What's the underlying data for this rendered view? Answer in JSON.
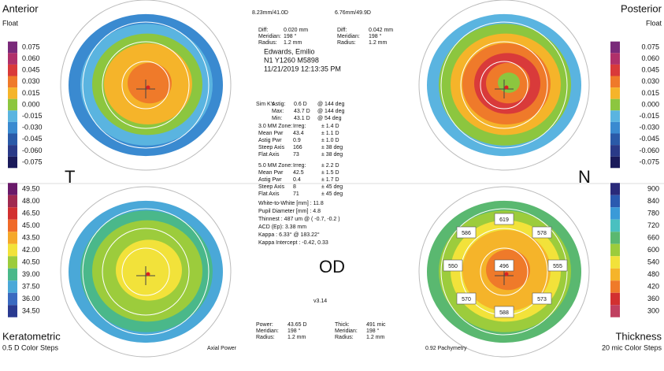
{
  "anterior": {
    "title": "Anterior",
    "subtitle": "Float",
    "scale": [
      "0.075",
      "0.060",
      "0.045",
      "0.030",
      "0.015",
      "0.000",
      "-0.015",
      "-0.030",
      "-0.045",
      "-0.060",
      "-0.075"
    ]
  },
  "posterior": {
    "title": "Posterior",
    "subtitle": "Float",
    "scale": [
      "0.075",
      "0.060",
      "0.045",
      "0.030",
      "0.015",
      "0.000",
      "-0.015",
      "-0.030",
      "-0.045",
      "-0.060",
      "-0.075"
    ]
  },
  "keratometric": {
    "title": "Keratometric",
    "subtitle": "0.5 D Color Steps",
    "map_name": "Axial Power",
    "scale": [
      "49.50",
      "48.00",
      "46.50",
      "45.00",
      "43.50",
      "42.00",
      "40.50",
      "39.00",
      "37.50",
      "36.00",
      "34.50"
    ]
  },
  "thickness": {
    "title": "Thickness",
    "subtitle": "20 mic Color Steps",
    "map_name": "0.92 Pachymetry",
    "scale": [
      "900",
      "840",
      "780",
      "720",
      "660",
      "600",
      "540",
      "480",
      "420",
      "360",
      "300"
    ],
    "points": [
      "619",
      "578",
      "555",
      "573",
      "588",
      "570",
      "550",
      "586",
      "496"
    ]
  },
  "top_left_header": "8.23mm/41.0D",
  "top_right_header": "6.76mm/49.9D",
  "diff_left": [
    [
      "Diff:",
      "0.020 mm"
    ],
    [
      "Meridian:",
      "198 °"
    ],
    [
      "Radius:",
      "1.2 mm"
    ]
  ],
  "diff_right": [
    [
      "Diff:",
      "0.042 mm"
    ],
    [
      "Meridian:",
      "198 °"
    ],
    [
      "Radius:",
      "1.2 mm"
    ]
  ],
  "patient": [
    "Edwards, Emilio",
    "N1 Y1260 M5898",
    "11/21/2019 12:13:35 PM"
  ],
  "simk": [
    [
      "Sim K's",
      "Astig:",
      "0.6 D",
      "@ 144 deg"
    ],
    [
      "",
      "Max:",
      "43.7 D",
      "@ 144 deg"
    ],
    [
      "",
      "Min:",
      "43.1 D",
      "@ 54 deg"
    ]
  ],
  "zone3": [
    [
      "3.0 MM Zone:",
      "Irreg:",
      "± 1.4 D"
    ],
    [
      "Mean Pwr",
      "43.4",
      "± 1.1 D"
    ],
    [
      "Astig Pwr",
      "0.9",
      "± 1.0 D"
    ],
    [
      "Steep Axis",
      "166",
      "± 38 deg"
    ],
    [
      "Flat Axis",
      "73",
      "± 38 deg"
    ]
  ],
  "zone5": [
    [
      "5.0 MM Zone:",
      "Irreg:",
      "± 2.2 D"
    ],
    [
      "Mean Pwr",
      "42.5",
      "± 1.5 D"
    ],
    [
      "Astig Pwr",
      "0.4",
      "± 1.7 D"
    ],
    [
      "Steep Axis",
      "8",
      "± 45 deg"
    ],
    [
      "Flat Axis",
      "71",
      "± 45 deg"
    ]
  ],
  "measurements": [
    "White-to-White [mm] : 11.8",
    "Pupil Diameter [mm] : 4.8",
    "Thinnest : 487 um @ ( -0.7, -0.2 )",
    "ACD (Ep): 3.38 mm",
    "Kappa : 6.33° @ 183.22°",
    "Kappa Intercept : -0.42, 0.33"
  ],
  "eye": "OD",
  "version": "v3.14",
  "temporal": "T",
  "nasal": "N",
  "bottom_left": [
    [
      "Power:",
      "43.65 D"
    ],
    [
      "Meridian:",
      "198 °"
    ],
    [
      "Radius:",
      "1.2 mm"
    ]
  ],
  "bottom_right": [
    [
      "Thick:",
      "491 mic"
    ],
    [
      "Meridian:",
      "198 °"
    ],
    [
      "Radius:",
      "1.2 mm"
    ]
  ]
}
